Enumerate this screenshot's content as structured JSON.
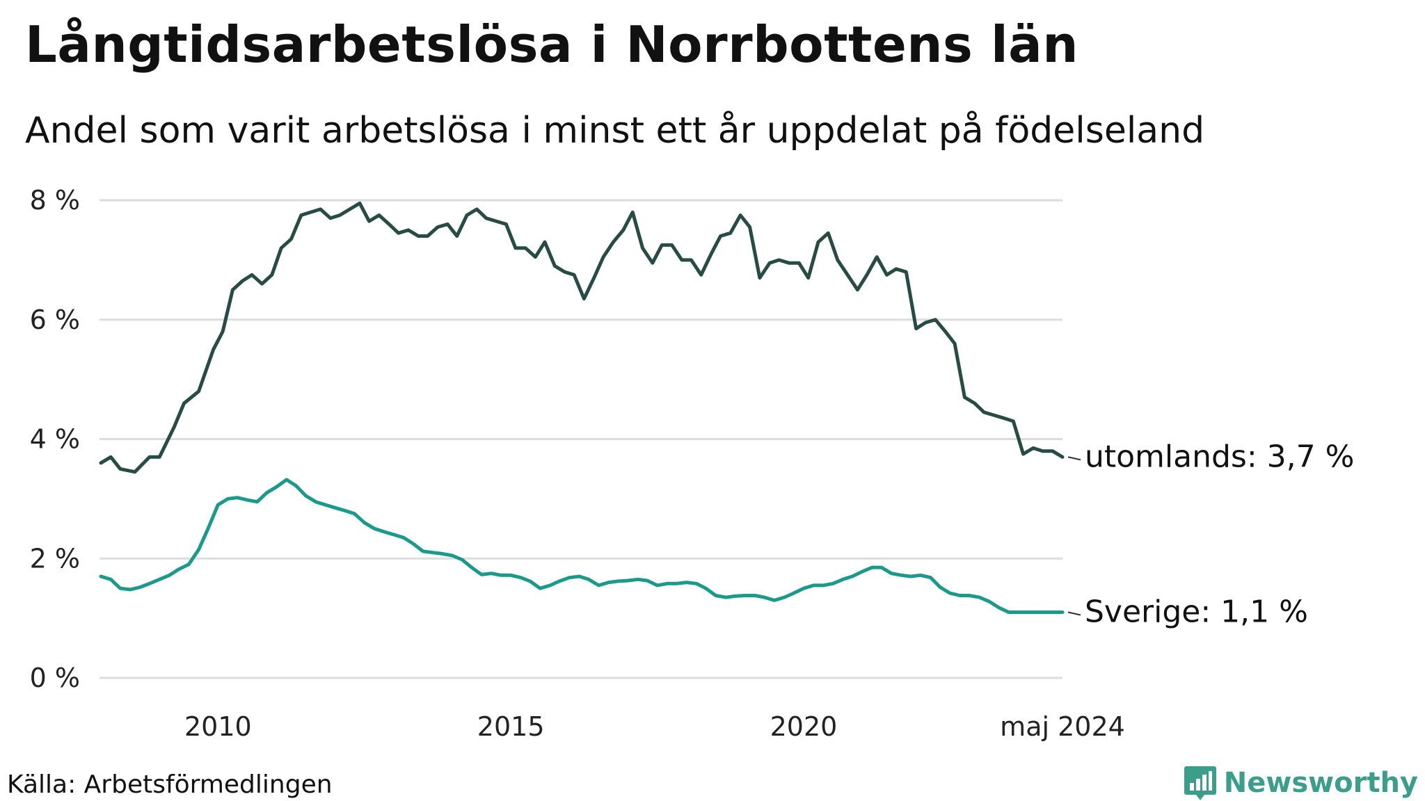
{
  "header": {
    "title": "Långtidsarbetslösa i Norrbottens län",
    "subtitle": "Andel som varit arbetslösa i minst ett år uppdelat på födelseland"
  },
  "footer": {
    "source": "Källa: Arbetsförmedlingen",
    "brand": "Newsworthy",
    "brand_logo_icon": "bar-chart-icon"
  },
  "colors": {
    "series_foreign": "#274c44",
    "series_sweden": "#1a9a8a",
    "grid": "#dddddd",
    "brand": "#3a9e8a"
  },
  "chart_data": {
    "type": "line",
    "title": "Långtidsarbetslösa i Norrbottens län",
    "subtitle": "Andel som varit arbetslösa i minst ett år uppdelat på födelseland",
    "xlabel": "",
    "ylabel": "",
    "x_ticks": [
      "2010",
      "2015",
      "2020",
      "maj 2024"
    ],
    "x_tick_values": [
      2010,
      2015,
      2020,
      2024.42
    ],
    "xlim": [
      2008.0,
      2024.42
    ],
    "y_ticks": [
      "0 %",
      "2 %",
      "4 %",
      "6 %",
      "8 %"
    ],
    "y_tick_values": [
      0,
      2,
      4,
      6,
      8
    ],
    "ylim": [
      0,
      8
    ],
    "grid": true,
    "series": [
      {
        "name": "utomlands",
        "end_label": "utomlands: 3,7 %",
        "points": [
          [
            2008.0,
            3.6
          ],
          [
            2008.17,
            3.7
          ],
          [
            2008.33,
            3.5
          ],
          [
            2008.58,
            3.45
          ],
          [
            2008.83,
            3.7
          ],
          [
            2009.0,
            3.7
          ],
          [
            2009.25,
            4.2
          ],
          [
            2009.42,
            4.6
          ],
          [
            2009.67,
            4.8
          ],
          [
            2009.92,
            5.5
          ],
          [
            2010.08,
            5.8
          ],
          [
            2010.25,
            6.5
          ],
          [
            2010.42,
            6.65
          ],
          [
            2010.58,
            6.75
          ],
          [
            2010.75,
            6.6
          ],
          [
            2010.92,
            6.75
          ],
          [
            2011.08,
            7.2
          ],
          [
            2011.25,
            7.35
          ],
          [
            2011.42,
            7.75
          ],
          [
            2011.58,
            7.8
          ],
          [
            2011.75,
            7.85
          ],
          [
            2011.92,
            7.7
          ],
          [
            2012.08,
            7.75
          ],
          [
            2012.25,
            7.85
          ],
          [
            2012.42,
            7.95
          ],
          [
            2012.58,
            7.65
          ],
          [
            2012.75,
            7.75
          ],
          [
            2012.92,
            7.6
          ],
          [
            2013.08,
            7.45
          ],
          [
            2013.25,
            7.5
          ],
          [
            2013.42,
            7.4
          ],
          [
            2013.58,
            7.4
          ],
          [
            2013.75,
            7.55
          ],
          [
            2013.92,
            7.6
          ],
          [
            2014.08,
            7.4
          ],
          [
            2014.25,
            7.75
          ],
          [
            2014.42,
            7.85
          ],
          [
            2014.58,
            7.7
          ],
          [
            2014.75,
            7.65
          ],
          [
            2014.92,
            7.6
          ],
          [
            2015.08,
            7.2
          ],
          [
            2015.25,
            7.2
          ],
          [
            2015.42,
            7.05
          ],
          [
            2015.58,
            7.3
          ],
          [
            2015.75,
            6.9
          ],
          [
            2015.92,
            6.8
          ],
          [
            2016.08,
            6.75
          ],
          [
            2016.25,
            6.35
          ],
          [
            2016.42,
            6.7
          ],
          [
            2016.58,
            7.05
          ],
          [
            2016.75,
            7.3
          ],
          [
            2016.92,
            7.5
          ],
          [
            2017.08,
            7.8
          ],
          [
            2017.25,
            7.2
          ],
          [
            2017.42,
            6.95
          ],
          [
            2017.58,
            7.25
          ],
          [
            2017.75,
            7.25
          ],
          [
            2017.92,
            7.0
          ],
          [
            2018.08,
            7.0
          ],
          [
            2018.25,
            6.75
          ],
          [
            2018.42,
            7.1
          ],
          [
            2018.58,
            7.4
          ],
          [
            2018.75,
            7.45
          ],
          [
            2018.92,
            7.75
          ],
          [
            2019.08,
            7.55
          ],
          [
            2019.25,
            6.7
          ],
          [
            2019.42,
            6.95
          ],
          [
            2019.58,
            7.0
          ],
          [
            2019.75,
            6.95
          ],
          [
            2019.92,
            6.95
          ],
          [
            2020.08,
            6.7
          ],
          [
            2020.25,
            7.3
          ],
          [
            2020.42,
            7.45
          ],
          [
            2020.58,
            7.0
          ],
          [
            2020.75,
            6.75
          ],
          [
            2020.92,
            6.5
          ],
          [
            2021.08,
            6.75
          ],
          [
            2021.25,
            7.05
          ],
          [
            2021.42,
            6.75
          ],
          [
            2021.58,
            6.85
          ],
          [
            2021.75,
            6.8
          ],
          [
            2021.92,
            5.85
          ],
          [
            2022.08,
            5.95
          ],
          [
            2022.25,
            6.0
          ],
          [
            2022.42,
            5.8
          ],
          [
            2022.58,
            5.6
          ],
          [
            2022.75,
            4.7
          ],
          [
            2022.92,
            4.6
          ],
          [
            2023.08,
            4.45
          ],
          [
            2023.25,
            4.4
          ],
          [
            2023.42,
            4.35
          ],
          [
            2023.58,
            4.3
          ],
          [
            2023.75,
            3.75
          ],
          [
            2023.92,
            3.85
          ],
          [
            2024.08,
            3.8
          ],
          [
            2024.25,
            3.8
          ],
          [
            2024.42,
            3.7
          ]
        ]
      },
      {
        "name": "Sverige",
        "end_label": "Sverige: 1,1 %",
        "points": [
          [
            2008.0,
            1.7
          ],
          [
            2008.17,
            1.65
          ],
          [
            2008.33,
            1.5
          ],
          [
            2008.5,
            1.48
          ],
          [
            2008.67,
            1.52
          ],
          [
            2008.83,
            1.58
          ],
          [
            2009.0,
            1.65
          ],
          [
            2009.17,
            1.72
          ],
          [
            2009.33,
            1.82
          ],
          [
            2009.5,
            1.9
          ],
          [
            2009.67,
            2.15
          ],
          [
            2009.83,
            2.5
          ],
          [
            2010.0,
            2.9
          ],
          [
            2010.17,
            3.0
          ],
          [
            2010.33,
            3.02
          ],
          [
            2010.5,
            2.98
          ],
          [
            2010.67,
            2.95
          ],
          [
            2010.83,
            3.1
          ],
          [
            2011.0,
            3.2
          ],
          [
            2011.17,
            3.32
          ],
          [
            2011.33,
            3.22
          ],
          [
            2011.5,
            3.05
          ],
          [
            2011.67,
            2.95
          ],
          [
            2011.83,
            2.9
          ],
          [
            2012.0,
            2.85
          ],
          [
            2012.17,
            2.8
          ],
          [
            2012.33,
            2.75
          ],
          [
            2012.5,
            2.6
          ],
          [
            2012.67,
            2.5
          ],
          [
            2012.83,
            2.45
          ],
          [
            2013.0,
            2.4
          ],
          [
            2013.17,
            2.35
          ],
          [
            2013.33,
            2.25
          ],
          [
            2013.5,
            2.12
          ],
          [
            2013.67,
            2.1
          ],
          [
            2013.83,
            2.08
          ],
          [
            2014.0,
            2.05
          ],
          [
            2014.17,
            1.98
          ],
          [
            2014.33,
            1.85
          ],
          [
            2014.5,
            1.73
          ],
          [
            2014.67,
            1.75
          ],
          [
            2014.83,
            1.72
          ],
          [
            2015.0,
            1.72
          ],
          [
            2015.17,
            1.68
          ],
          [
            2015.33,
            1.62
          ],
          [
            2015.5,
            1.5
          ],
          [
            2015.67,
            1.55
          ],
          [
            2015.83,
            1.62
          ],
          [
            2016.0,
            1.68
          ],
          [
            2016.17,
            1.7
          ],
          [
            2016.33,
            1.65
          ],
          [
            2016.5,
            1.55
          ],
          [
            2016.67,
            1.6
          ],
          [
            2016.83,
            1.62
          ],
          [
            2017.0,
            1.63
          ],
          [
            2017.17,
            1.65
          ],
          [
            2017.33,
            1.63
          ],
          [
            2017.5,
            1.55
          ],
          [
            2017.67,
            1.58
          ],
          [
            2017.83,
            1.58
          ],
          [
            2018.0,
            1.6
          ],
          [
            2018.17,
            1.58
          ],
          [
            2018.33,
            1.5
          ],
          [
            2018.5,
            1.38
          ],
          [
            2018.67,
            1.35
          ],
          [
            2018.83,
            1.37
          ],
          [
            2019.0,
            1.38
          ],
          [
            2019.17,
            1.38
          ],
          [
            2019.33,
            1.35
          ],
          [
            2019.5,
            1.3
          ],
          [
            2019.67,
            1.35
          ],
          [
            2019.83,
            1.42
          ],
          [
            2020.0,
            1.5
          ],
          [
            2020.17,
            1.55
          ],
          [
            2020.33,
            1.55
          ],
          [
            2020.5,
            1.58
          ],
          [
            2020.67,
            1.65
          ],
          [
            2020.83,
            1.7
          ],
          [
            2021.0,
            1.78
          ],
          [
            2021.17,
            1.85
          ],
          [
            2021.33,
            1.85
          ],
          [
            2021.5,
            1.75
          ],
          [
            2021.67,
            1.72
          ],
          [
            2021.83,
            1.7
          ],
          [
            2022.0,
            1.72
          ],
          [
            2022.17,
            1.68
          ],
          [
            2022.33,
            1.52
          ],
          [
            2022.5,
            1.42
          ],
          [
            2022.67,
            1.38
          ],
          [
            2022.83,
            1.38
          ],
          [
            2023.0,
            1.35
          ],
          [
            2023.17,
            1.28
          ],
          [
            2023.33,
            1.18
          ],
          [
            2023.5,
            1.1
          ],
          [
            2023.67,
            1.1
          ],
          [
            2023.83,
            1.1
          ],
          [
            2024.0,
            1.1
          ],
          [
            2024.17,
            1.1
          ],
          [
            2024.33,
            1.1
          ],
          [
            2024.42,
            1.1
          ]
        ]
      }
    ]
  }
}
